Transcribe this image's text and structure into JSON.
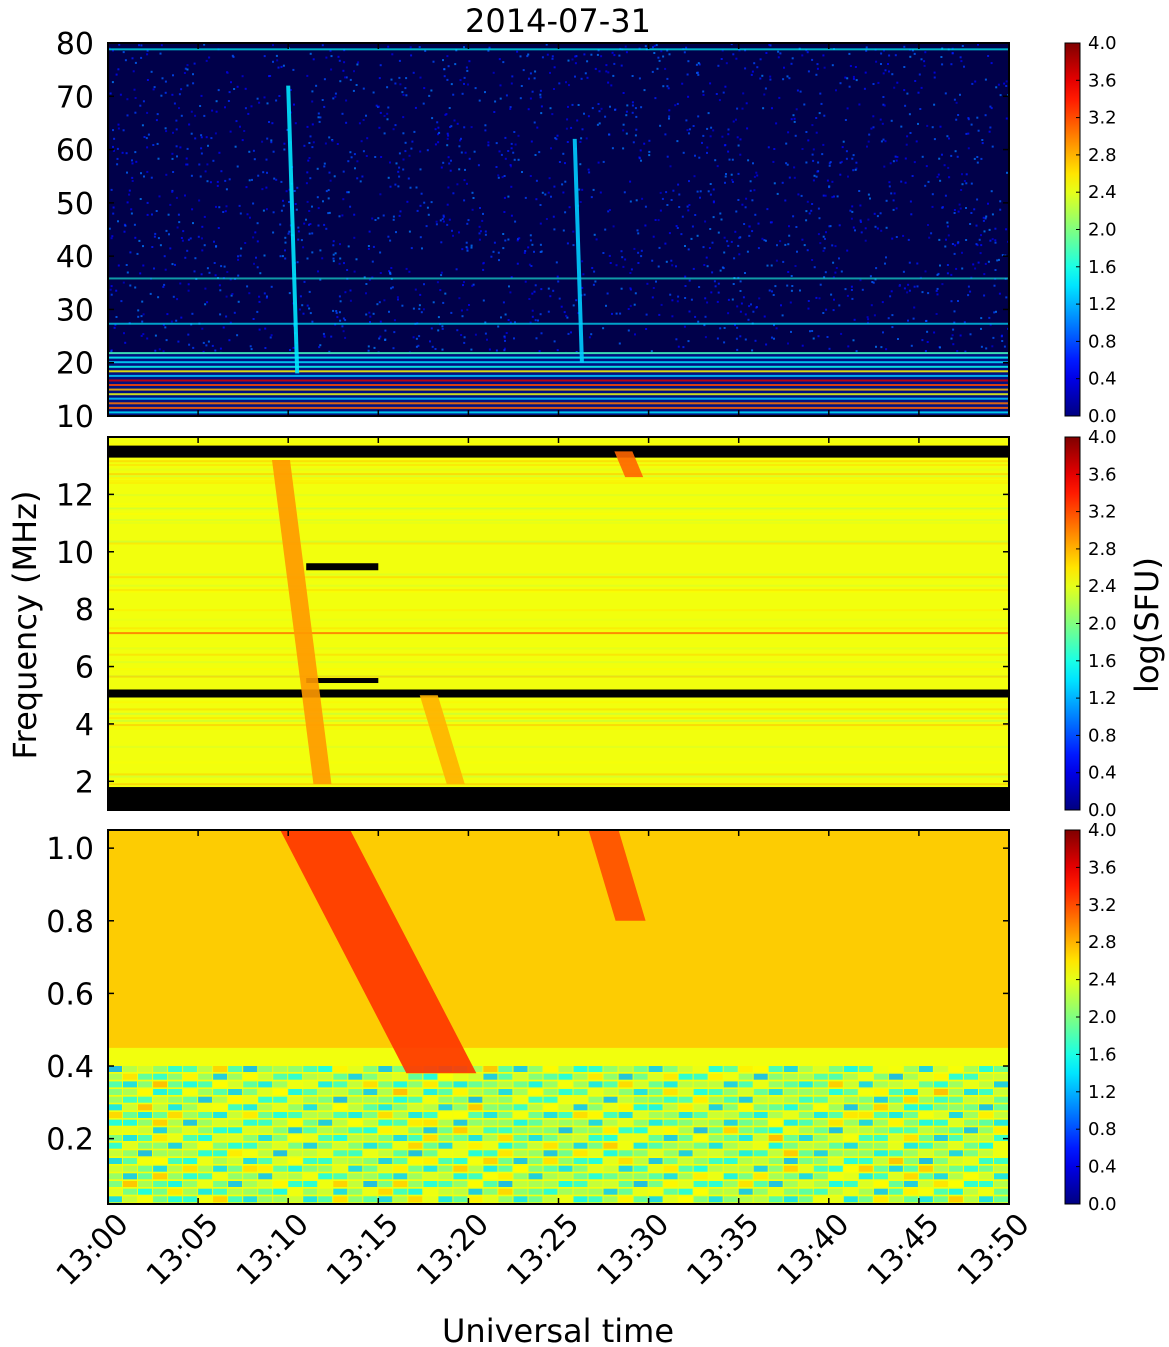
{
  "chart_data": {
    "type": "heatmap",
    "title": "2014-07-31",
    "xlabel": "Universal time",
    "ylabel": "Frequency (MHz)",
    "colorbar_label": "log(SFU)",
    "colormap": "jet",
    "color_range": [
      0.0,
      4.0
    ],
    "x_range": [
      "13:00",
      "13:50"
    ],
    "x_ticks": [
      "13:00",
      "13:05",
      "13:10",
      "13:15",
      "13:20",
      "13:25",
      "13:30",
      "13:35",
      "13:40",
      "13:45",
      "13:50"
    ],
    "panels": [
      {
        "name": "top",
        "ylim": [
          10,
          80
        ],
        "y_ticks": [
          10,
          20,
          30,
          40,
          50,
          60,
          70,
          80
        ],
        "y_tick_labels": [
          "10",
          "20",
          "30",
          "40",
          "50",
          "60",
          "70",
          "80"
        ],
        "colorbar_ticks": [
          "0.0",
          "0.4",
          "0.8",
          "1.2",
          "1.6",
          "2.0",
          "2.4",
          "2.8",
          "3.2",
          "3.6",
          "4.0"
        ],
        "bursts": [
          {
            "start_min": 10.0,
            "f_top": 72,
            "f_bottom": 18,
            "drift_min": 0.5,
            "level": 1.4
          },
          {
            "start_min": 25.9,
            "f_top": 62,
            "f_bottom": 20,
            "drift_min": 0.4,
            "level": 1.3
          }
        ]
      },
      {
        "name": "middle",
        "ylim": [
          1,
          14
        ],
        "y_ticks": [
          2,
          4,
          6,
          8,
          10,
          12
        ],
        "y_tick_labels": [
          "2",
          "4",
          "6",
          "8",
          "10",
          "12"
        ],
        "colorbar_ticks": [
          "0.0",
          "0.4",
          "0.8",
          "1.2",
          "1.6",
          "2.0",
          "2.4",
          "2.8",
          "3.2",
          "3.6",
          "4.0"
        ],
        "bursts": [
          {
            "start_min": 9.6,
            "f_top": 13.2,
            "f_bottom": 1.9,
            "drift_min": 2.3,
            "level": 2.9
          },
          {
            "start_min": 17.8,
            "f_top": 5.0,
            "f_bottom": 1.9,
            "drift_min": 1.5,
            "level": 2.8
          },
          {
            "start_min": 28.6,
            "f_top": 13.5,
            "f_bottom": 12.6,
            "drift_min": 0.6,
            "level": 3.1
          }
        ]
      },
      {
        "name": "bottom",
        "ylim": [
          0.02,
          1.05
        ],
        "y_ticks": [
          0.2,
          0.4,
          0.6,
          0.8,
          1.0
        ],
        "y_tick_labels": [
          "0.2",
          "0.4",
          "0.6",
          "0.8",
          "1.0"
        ],
        "colorbar_ticks": [
          "0.0",
          "0.4",
          "0.8",
          "1.2",
          "1.6",
          "2.0",
          "2.4",
          "2.8",
          "3.2",
          "3.6",
          "4.0"
        ],
        "bursts": [
          {
            "start_min": 11.5,
            "f_top": 1.05,
            "f_bottom": 0.38,
            "drift_min": 7.0,
            "level": 3.3
          },
          {
            "start_min": 27.5,
            "f_top": 1.05,
            "f_bottom": 0.8,
            "drift_min": 1.5,
            "level": 3.2
          }
        ]
      }
    ]
  }
}
